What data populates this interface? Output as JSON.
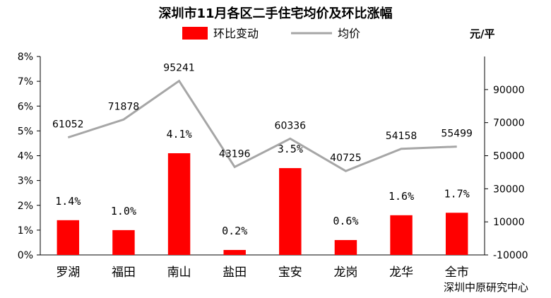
{
  "chart_data": {
    "type": "bar+line",
    "title": "深圳市11月各区二手住宅均价及环比涨幅",
    "categories": [
      "罗湖",
      "福田",
      "南山",
      "盐田",
      "宝安",
      "龙岗",
      "龙华",
      "全市"
    ],
    "series": [
      {
        "name": "环比变动",
        "type": "bar",
        "axis": "left",
        "values": [
          1.4,
          1.0,
          4.1,
          0.2,
          3.5,
          0.6,
          1.6,
          1.7
        ],
        "labels": [
          "1.4%",
          "1.0%",
          "4.1%",
          "0.2%",
          "3.5%",
          "0.6%",
          "1.6%",
          "1.7%"
        ],
        "color": "#ff0000"
      },
      {
        "name": "均价",
        "type": "line",
        "axis": "right",
        "values": [
          61052,
          71878,
          95241,
          43196,
          60336,
          40725,
          54158,
          55499
        ],
        "labels": [
          "61052",
          "71878",
          "95241",
          "43196",
          "60336",
          "40725",
          "54158",
          "55499"
        ],
        "color": "#a6a6a6"
      }
    ],
    "left_axis": {
      "ylim": [
        0,
        8
      ],
      "ticks": [
        "0%",
        "1%",
        "2%",
        "3%",
        "4%",
        "5%",
        "6%",
        "7%",
        "8%"
      ]
    },
    "right_axis": {
      "unit": "元/平",
      "ylim": [
        -10000,
        110000
      ],
      "ticks": [
        "-10000",
        "10000",
        "30000",
        "50000",
        "70000",
        "90000"
      ],
      "tick_values": [
        -10000,
        10000,
        30000,
        50000,
        70000,
        90000
      ]
    },
    "legend_position": "top",
    "grid": false,
    "source": "深圳中原研究中心"
  }
}
